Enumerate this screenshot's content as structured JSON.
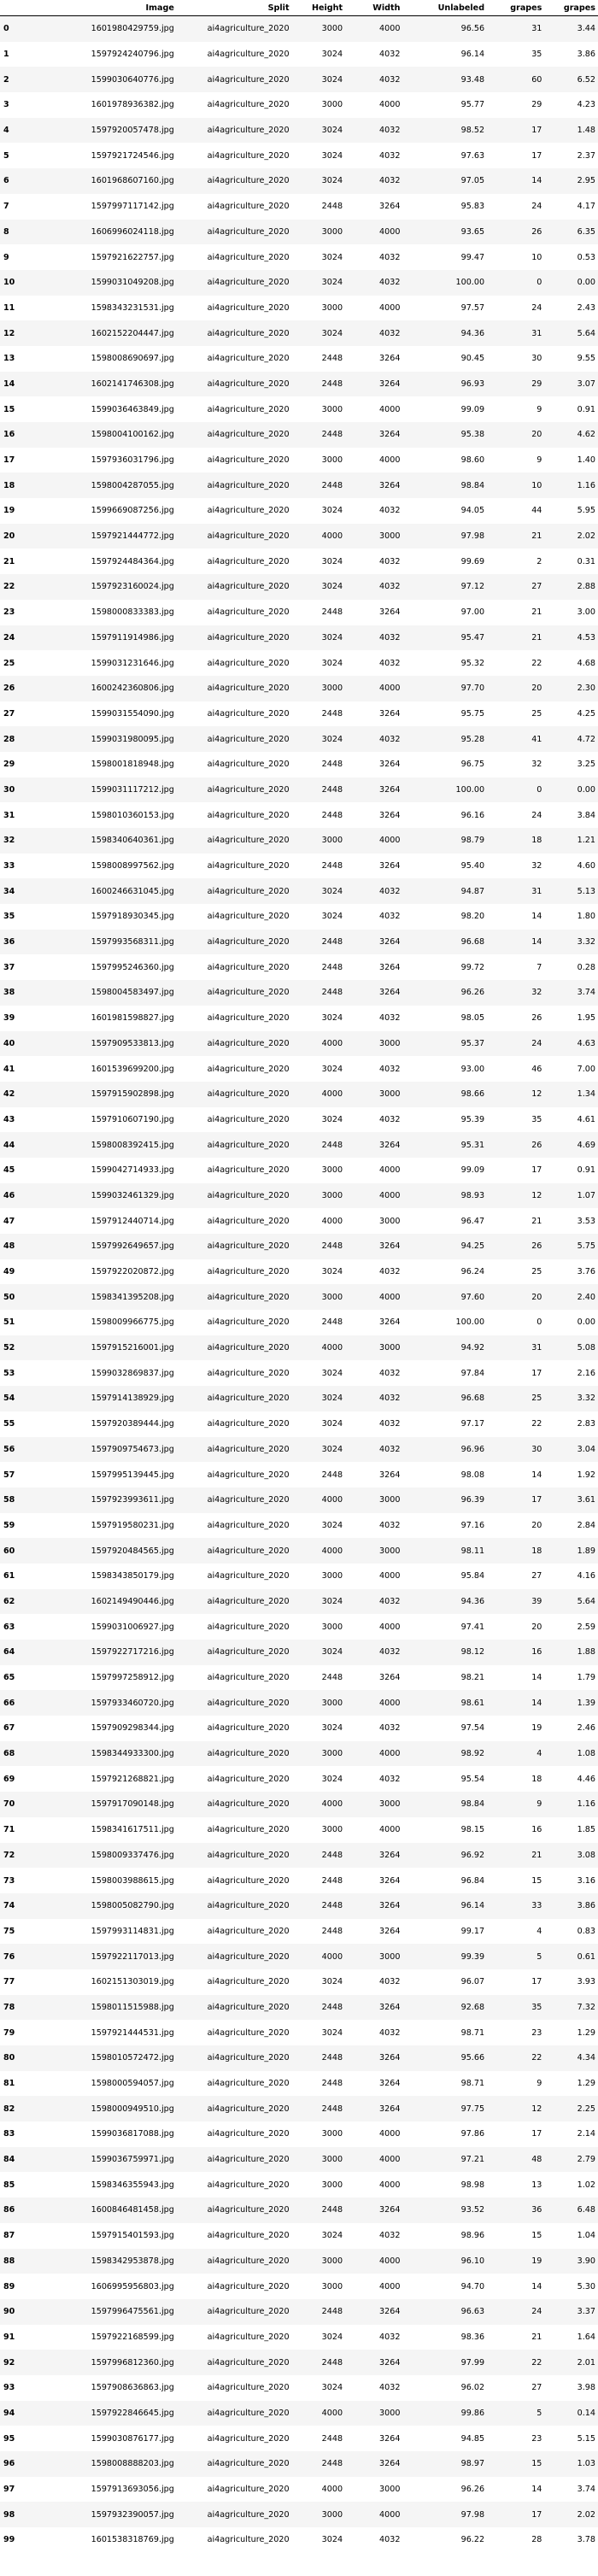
{
  "table": {
    "columns": [
      "",
      "Image",
      "Split",
      "Height",
      "Width",
      "Unlabeled",
      "grapes",
      "grapes"
    ],
    "rows": [
      [
        "0",
        "1601980429759.jpg",
        "ai4agriculture_2020",
        "3000",
        "4000",
        "96.56",
        "31",
        "3.44"
      ],
      [
        "1",
        "1597924240796.jpg",
        "ai4agriculture_2020",
        "3024",
        "4032",
        "96.14",
        "35",
        "3.86"
      ],
      [
        "2",
        "1599030640776.jpg",
        "ai4agriculture_2020",
        "3024",
        "4032",
        "93.48",
        "60",
        "6.52"
      ],
      [
        "3",
        "1601978936382.jpg",
        "ai4agriculture_2020",
        "3000",
        "4000",
        "95.77",
        "29",
        "4.23"
      ],
      [
        "4",
        "1597920057478.jpg",
        "ai4agriculture_2020",
        "3024",
        "4032",
        "98.52",
        "17",
        "1.48"
      ],
      [
        "5",
        "1597921724546.jpg",
        "ai4agriculture_2020",
        "3024",
        "4032",
        "97.63",
        "17",
        "2.37"
      ],
      [
        "6",
        "1601968607160.jpg",
        "ai4agriculture_2020",
        "3024",
        "4032",
        "97.05",
        "14",
        "2.95"
      ],
      [
        "7",
        "1597997117142.jpg",
        "ai4agriculture_2020",
        "2448",
        "3264",
        "95.83",
        "24",
        "4.17"
      ],
      [
        "8",
        "1606996024118.jpg",
        "ai4agriculture_2020",
        "3000",
        "4000",
        "93.65",
        "26",
        "6.35"
      ],
      [
        "9",
        "1597921622757.jpg",
        "ai4agriculture_2020",
        "3024",
        "4032",
        "99.47",
        "10",
        "0.53"
      ],
      [
        "10",
        "1599031049208.jpg",
        "ai4agriculture_2020",
        "3024",
        "4032",
        "100.00",
        "0",
        "0.00"
      ],
      [
        "11",
        "1598343231531.jpg",
        "ai4agriculture_2020",
        "3000",
        "4000",
        "97.57",
        "24",
        "2.43"
      ],
      [
        "12",
        "1602152204447.jpg",
        "ai4agriculture_2020",
        "3024",
        "4032",
        "94.36",
        "31",
        "5.64"
      ],
      [
        "13",
        "1598008690697.jpg",
        "ai4agriculture_2020",
        "2448",
        "3264",
        "90.45",
        "30",
        "9.55"
      ],
      [
        "14",
        "1602141746308.jpg",
        "ai4agriculture_2020",
        "2448",
        "3264",
        "96.93",
        "29",
        "3.07"
      ],
      [
        "15",
        "1599036463849.jpg",
        "ai4agriculture_2020",
        "3000",
        "4000",
        "99.09",
        "9",
        "0.91"
      ],
      [
        "16",
        "1598004100162.jpg",
        "ai4agriculture_2020",
        "2448",
        "3264",
        "95.38",
        "20",
        "4.62"
      ],
      [
        "17",
        "1597936031796.jpg",
        "ai4agriculture_2020",
        "3000",
        "4000",
        "98.60",
        "9",
        "1.40"
      ],
      [
        "18",
        "1598004287055.jpg",
        "ai4agriculture_2020",
        "2448",
        "3264",
        "98.84",
        "10",
        "1.16"
      ],
      [
        "19",
        "1599669087256.jpg",
        "ai4agriculture_2020",
        "3024",
        "4032",
        "94.05",
        "44",
        "5.95"
      ],
      [
        "20",
        "1597921444772.jpg",
        "ai4agriculture_2020",
        "4000",
        "3000",
        "97.98",
        "21",
        "2.02"
      ],
      [
        "21",
        "1597924484364.jpg",
        "ai4agriculture_2020",
        "3024",
        "4032",
        "99.69",
        "2",
        "0.31"
      ],
      [
        "22",
        "1597923160024.jpg",
        "ai4agriculture_2020",
        "3024",
        "4032",
        "97.12",
        "27",
        "2.88"
      ],
      [
        "23",
        "1598000833383.jpg",
        "ai4agriculture_2020",
        "2448",
        "3264",
        "97.00",
        "21",
        "3.00"
      ],
      [
        "24",
        "1597911914986.jpg",
        "ai4agriculture_2020",
        "3024",
        "4032",
        "95.47",
        "21",
        "4.53"
      ],
      [
        "25",
        "1599031231646.jpg",
        "ai4agriculture_2020",
        "3024",
        "4032",
        "95.32",
        "22",
        "4.68"
      ],
      [
        "26",
        "1600242360806.jpg",
        "ai4agriculture_2020",
        "3000",
        "4000",
        "97.70",
        "20",
        "2.30"
      ],
      [
        "27",
        "1599031554090.jpg",
        "ai4agriculture_2020",
        "2448",
        "3264",
        "95.75",
        "25",
        "4.25"
      ],
      [
        "28",
        "1599031980095.jpg",
        "ai4agriculture_2020",
        "3024",
        "4032",
        "95.28",
        "41",
        "4.72"
      ],
      [
        "29",
        "1598001818948.jpg",
        "ai4agriculture_2020",
        "2448",
        "3264",
        "96.75",
        "32",
        "3.25"
      ],
      [
        "30",
        "1599031117212.jpg",
        "ai4agriculture_2020",
        "2448",
        "3264",
        "100.00",
        "0",
        "0.00"
      ],
      [
        "31",
        "1598010360153.jpg",
        "ai4agriculture_2020",
        "2448",
        "3264",
        "96.16",
        "24",
        "3.84"
      ],
      [
        "32",
        "1598340640361.jpg",
        "ai4agriculture_2020",
        "3000",
        "4000",
        "98.79",
        "18",
        "1.21"
      ],
      [
        "33",
        "1598008997562.jpg",
        "ai4agriculture_2020",
        "2448",
        "3264",
        "95.40",
        "32",
        "4.60"
      ],
      [
        "34",
        "1600246631045.jpg",
        "ai4agriculture_2020",
        "3024",
        "4032",
        "94.87",
        "31",
        "5.13"
      ],
      [
        "35",
        "1597918930345.jpg",
        "ai4agriculture_2020",
        "3024",
        "4032",
        "98.20",
        "14",
        "1.80"
      ],
      [
        "36",
        "1597993568311.jpg",
        "ai4agriculture_2020",
        "2448",
        "3264",
        "96.68",
        "14",
        "3.32"
      ],
      [
        "37",
        "1597995246360.jpg",
        "ai4agriculture_2020",
        "2448",
        "3264",
        "99.72",
        "7",
        "0.28"
      ],
      [
        "38",
        "1598004583497.jpg",
        "ai4agriculture_2020",
        "2448",
        "3264",
        "96.26",
        "32",
        "3.74"
      ],
      [
        "39",
        "1601981598827.jpg",
        "ai4agriculture_2020",
        "3024",
        "4032",
        "98.05",
        "26",
        "1.95"
      ],
      [
        "40",
        "1597909533813.jpg",
        "ai4agriculture_2020",
        "4000",
        "3000",
        "95.37",
        "24",
        "4.63"
      ],
      [
        "41",
        "1601539699200.jpg",
        "ai4agriculture_2020",
        "3024",
        "4032",
        "93.00",
        "46",
        "7.00"
      ],
      [
        "42",
        "1597915902898.jpg",
        "ai4agriculture_2020",
        "4000",
        "3000",
        "98.66",
        "12",
        "1.34"
      ],
      [
        "43",
        "1597910607190.jpg",
        "ai4agriculture_2020",
        "3024",
        "4032",
        "95.39",
        "35",
        "4.61"
      ],
      [
        "44",
        "1598008392415.jpg",
        "ai4agriculture_2020",
        "2448",
        "3264",
        "95.31",
        "26",
        "4.69"
      ],
      [
        "45",
        "1599042714933.jpg",
        "ai4agriculture_2020",
        "3000",
        "4000",
        "99.09",
        "17",
        "0.91"
      ],
      [
        "46",
        "1599032461329.jpg",
        "ai4agriculture_2020",
        "3000",
        "4000",
        "98.93",
        "12",
        "1.07"
      ],
      [
        "47",
        "1597912440714.jpg",
        "ai4agriculture_2020",
        "4000",
        "3000",
        "96.47",
        "21",
        "3.53"
      ],
      [
        "48",
        "1597992649657.jpg",
        "ai4agriculture_2020",
        "2448",
        "3264",
        "94.25",
        "26",
        "5.75"
      ],
      [
        "49",
        "1597922020872.jpg",
        "ai4agriculture_2020",
        "3024",
        "4032",
        "96.24",
        "25",
        "3.76"
      ],
      [
        "50",
        "1598341395208.jpg",
        "ai4agriculture_2020",
        "3000",
        "4000",
        "97.60",
        "20",
        "2.40"
      ],
      [
        "51",
        "1598009966775.jpg",
        "ai4agriculture_2020",
        "2448",
        "3264",
        "100.00",
        "0",
        "0.00"
      ],
      [
        "52",
        "1597915216001.jpg",
        "ai4agriculture_2020",
        "4000",
        "3000",
        "94.92",
        "31",
        "5.08"
      ],
      [
        "53",
        "1599032869837.jpg",
        "ai4agriculture_2020",
        "3024",
        "4032",
        "97.84",
        "17",
        "2.16"
      ],
      [
        "54",
        "1597914138929.jpg",
        "ai4agriculture_2020",
        "3024",
        "4032",
        "96.68",
        "25",
        "3.32"
      ],
      [
        "55",
        "1597920389444.jpg",
        "ai4agriculture_2020",
        "3024",
        "4032",
        "97.17",
        "22",
        "2.83"
      ],
      [
        "56",
        "1597909754673.jpg",
        "ai4agriculture_2020",
        "3024",
        "4032",
        "96.96",
        "30",
        "3.04"
      ],
      [
        "57",
        "1597995139445.jpg",
        "ai4agriculture_2020",
        "2448",
        "3264",
        "98.08",
        "14",
        "1.92"
      ],
      [
        "58",
        "1597923993611.jpg",
        "ai4agriculture_2020",
        "4000",
        "3000",
        "96.39",
        "17",
        "3.61"
      ],
      [
        "59",
        "1597919580231.jpg",
        "ai4agriculture_2020",
        "3024",
        "4032",
        "97.16",
        "20",
        "2.84"
      ],
      [
        "60",
        "1597920484565.jpg",
        "ai4agriculture_2020",
        "4000",
        "3000",
        "98.11",
        "18",
        "1.89"
      ],
      [
        "61",
        "1598343850179.jpg",
        "ai4agriculture_2020",
        "3000",
        "4000",
        "95.84",
        "27",
        "4.16"
      ],
      [
        "62",
        "1602149490446.jpg",
        "ai4agriculture_2020",
        "3024",
        "4032",
        "94.36",
        "39",
        "5.64"
      ],
      [
        "63",
        "1599031006927.jpg",
        "ai4agriculture_2020",
        "3000",
        "4000",
        "97.41",
        "20",
        "2.59"
      ],
      [
        "64",
        "1597922717216.jpg",
        "ai4agriculture_2020",
        "3024",
        "4032",
        "98.12",
        "16",
        "1.88"
      ],
      [
        "65",
        "1597997258912.jpg",
        "ai4agriculture_2020",
        "2448",
        "3264",
        "98.21",
        "14",
        "1.79"
      ],
      [
        "66",
        "1597933460720.jpg",
        "ai4agriculture_2020",
        "3000",
        "4000",
        "98.61",
        "14",
        "1.39"
      ],
      [
        "67",
        "1597909298344.jpg",
        "ai4agriculture_2020",
        "3024",
        "4032",
        "97.54",
        "19",
        "2.46"
      ],
      [
        "68",
        "1598344933300.jpg",
        "ai4agriculture_2020",
        "3000",
        "4000",
        "98.92",
        "4",
        "1.08"
      ],
      [
        "69",
        "1597921268821.jpg",
        "ai4agriculture_2020",
        "3024",
        "4032",
        "95.54",
        "18",
        "4.46"
      ],
      [
        "70",
        "1597917090148.jpg",
        "ai4agriculture_2020",
        "4000",
        "3000",
        "98.84",
        "9",
        "1.16"
      ],
      [
        "71",
        "1598341617511.jpg",
        "ai4agriculture_2020",
        "3000",
        "4000",
        "98.15",
        "16",
        "1.85"
      ],
      [
        "72",
        "1598009337476.jpg",
        "ai4agriculture_2020",
        "2448",
        "3264",
        "96.92",
        "21",
        "3.08"
      ],
      [
        "73",
        "1598003988615.jpg",
        "ai4agriculture_2020",
        "2448",
        "3264",
        "96.84",
        "15",
        "3.16"
      ],
      [
        "74",
        "1598005082790.jpg",
        "ai4agriculture_2020",
        "2448",
        "3264",
        "96.14",
        "33",
        "3.86"
      ],
      [
        "75",
        "1597993114831.jpg",
        "ai4agriculture_2020",
        "2448",
        "3264",
        "99.17",
        "4",
        "0.83"
      ],
      [
        "76",
        "1597922117013.jpg",
        "ai4agriculture_2020",
        "4000",
        "3000",
        "99.39",
        "5",
        "0.61"
      ],
      [
        "77",
        "1602151303019.jpg",
        "ai4agriculture_2020",
        "3024",
        "4032",
        "96.07",
        "17",
        "3.93"
      ],
      [
        "78",
        "1598011515988.jpg",
        "ai4agriculture_2020",
        "2448",
        "3264",
        "92.68",
        "35",
        "7.32"
      ],
      [
        "79",
        "1597921444531.jpg",
        "ai4agriculture_2020",
        "3024",
        "4032",
        "98.71",
        "23",
        "1.29"
      ],
      [
        "80",
        "1598010572472.jpg",
        "ai4agriculture_2020",
        "2448",
        "3264",
        "95.66",
        "22",
        "4.34"
      ],
      [
        "81",
        "1598000594057.jpg",
        "ai4agriculture_2020",
        "2448",
        "3264",
        "98.71",
        "9",
        "1.29"
      ],
      [
        "82",
        "1598000949510.jpg",
        "ai4agriculture_2020",
        "2448",
        "3264",
        "97.75",
        "12",
        "2.25"
      ],
      [
        "83",
        "1599036817088.jpg",
        "ai4agriculture_2020",
        "3000",
        "4000",
        "97.86",
        "17",
        "2.14"
      ],
      [
        "84",
        "1599036759971.jpg",
        "ai4agriculture_2020",
        "3000",
        "4000",
        "97.21",
        "48",
        "2.79"
      ],
      [
        "85",
        "1598346355943.jpg",
        "ai4agriculture_2020",
        "3000",
        "4000",
        "98.98",
        "13",
        "1.02"
      ],
      [
        "86",
        "1600846481458.jpg",
        "ai4agriculture_2020",
        "2448",
        "3264",
        "93.52",
        "36",
        "6.48"
      ],
      [
        "87",
        "1597915401593.jpg",
        "ai4agriculture_2020",
        "3024",
        "4032",
        "98.96",
        "15",
        "1.04"
      ],
      [
        "88",
        "1598342953878.jpg",
        "ai4agriculture_2020",
        "3000",
        "4000",
        "96.10",
        "19",
        "3.90"
      ],
      [
        "89",
        "1606995956803.jpg",
        "ai4agriculture_2020",
        "3000",
        "4000",
        "94.70",
        "14",
        "5.30"
      ],
      [
        "90",
        "1597996475561.jpg",
        "ai4agriculture_2020",
        "2448",
        "3264",
        "96.63",
        "24",
        "3.37"
      ],
      [
        "91",
        "1597922168599.jpg",
        "ai4agriculture_2020",
        "3024",
        "4032",
        "98.36",
        "21",
        "1.64"
      ],
      [
        "92",
        "1597996812360.jpg",
        "ai4agriculture_2020",
        "2448",
        "3264",
        "97.99",
        "22",
        "2.01"
      ],
      [
        "93",
        "1597908636863.jpg",
        "ai4agriculture_2020",
        "3024",
        "4032",
        "96.02",
        "27",
        "3.98"
      ],
      [
        "94",
        "1597922846645.jpg",
        "ai4agriculture_2020",
        "4000",
        "3000",
        "99.86",
        "5",
        "0.14"
      ],
      [
        "95",
        "1599030876177.jpg",
        "ai4agriculture_2020",
        "2448",
        "3264",
        "94.85",
        "23",
        "5.15"
      ],
      [
        "96",
        "1598008888203.jpg",
        "ai4agriculture_2020",
        "2448",
        "3264",
        "98.97",
        "15",
        "1.03"
      ],
      [
        "97",
        "1597913693056.jpg",
        "ai4agriculture_2020",
        "4000",
        "3000",
        "96.26",
        "14",
        "3.74"
      ],
      [
        "98",
        "1597932390057.jpg",
        "ai4agriculture_2020",
        "3000",
        "4000",
        "97.98",
        "17",
        "2.02"
      ],
      [
        "99",
        "1601538318769.jpg",
        "ai4agriculture_2020",
        "3024",
        "4032",
        "96.22",
        "28",
        "3.78"
      ]
    ]
  }
}
